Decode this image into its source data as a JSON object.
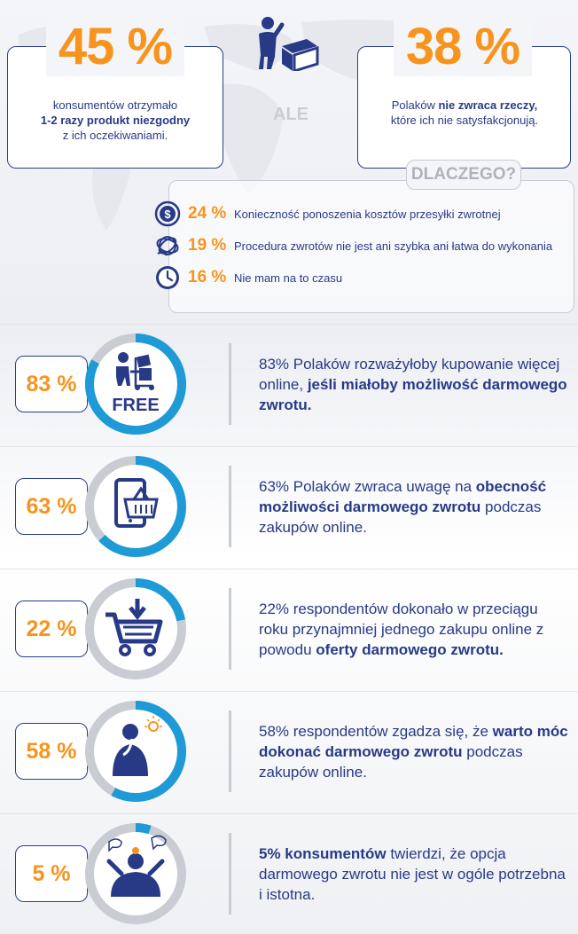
{
  "colors": {
    "navy": "#283a86",
    "orange": "#f7941d",
    "blue": "#1e9ad6",
    "grey": "#c9ccd3"
  },
  "top_left": {
    "number": "45 %",
    "line1": "konsumentów otrzymało",
    "line2_bold": "1-2 razy produkt niezgodny",
    "line3": "z ich oczekiwaniami."
  },
  "middle": {
    "ale": "ALE",
    "icon": "person-with-box-icon"
  },
  "top_right": {
    "number": "38 %",
    "line1_pre": "Polaków ",
    "line1_bold": "nie zwraca rzeczy,",
    "line2": "które ich nie satysfakcjonują."
  },
  "why": {
    "tag": "DLACZEGO?",
    "reasons": [
      {
        "icon": "dollar-coin-icon",
        "pct": "24 %",
        "text": "Konieczność ponoszenia kosztów przesyłki zwrotnej"
      },
      {
        "icon": "tangled-knot-icon",
        "pct": "19 %",
        "text": "Procedura zwrotów nie jest ani szybka ani łatwa do wykonania"
      },
      {
        "icon": "clock-icon",
        "pct": "16 %",
        "text": "Nie mam na to czasu"
      }
    ]
  },
  "stats": [
    {
      "pct": "83 %",
      "value": 83,
      "icon": "delivery-man-free-icon",
      "icon_label": "FREE",
      "text_pre": "83% Polaków rozważyłoby kupowanie więcej online, ",
      "text_bold": "jeśli miałoby możliwość darmowego zwrotu.",
      "text_post": ""
    },
    {
      "pct": "63 %",
      "value": 63,
      "icon": "tablet-basket-icon",
      "text_pre": "63% Polaków zwraca uwagę na ",
      "text_bold": "obecność możliwości darmowego zwrotu",
      "text_post": " podczas zakupów online."
    },
    {
      "pct": "22 %",
      "value": 22,
      "icon": "shopping-cart-arrow-icon",
      "text_pre": "22% respondentów dokonało w przeciągu roku przynajmniej jednego zakupu online z powodu ",
      "text_bold": "oferty darmowego zwrotu.",
      "text_post": ""
    },
    {
      "pct": "58 %",
      "value": 58,
      "icon": "thinking-man-lightbulb-icon",
      "text_pre": "58% respondentów zgadza się, że ",
      "text_bold": "warto móc dokonać darmowego zwrotu",
      "text_post": " podczas zakupów online."
    },
    {
      "pct": "5 %",
      "value": 5,
      "icon": "woman-speech-bubbles-icon",
      "text_pre": "",
      "text_bold": "5% konsumentów",
      "text_post": " twierdzi, że opcja darmowego zwrotu nie jest w ogóle potrzebna i istotna."
    }
  ]
}
